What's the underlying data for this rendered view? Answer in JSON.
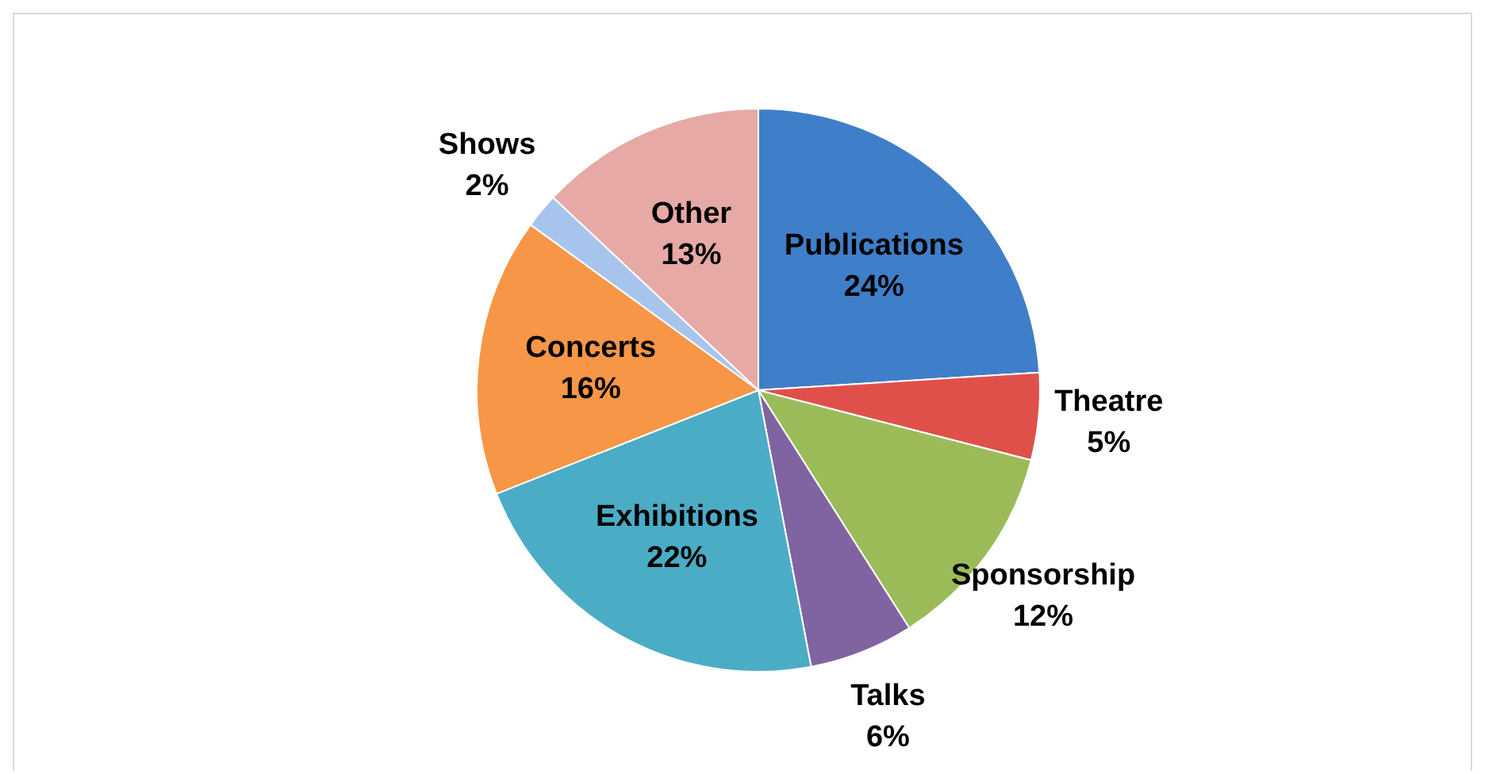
{
  "chart_data": {
    "type": "pie",
    "categories": [
      "Publications",
      "Theatre",
      "Sponsorship",
      "Talks",
      "Exhibitions",
      "Concerts",
      "Shows",
      "Other"
    ],
    "values": [
      24,
      5,
      12,
      6,
      22,
      16,
      2,
      13
    ],
    "value_labels": [
      "24%",
      "5%",
      "12%",
      "6%",
      "22%",
      "16%",
      "2%",
      "13%"
    ],
    "colors": [
      "#3f7ec8",
      "#e0504a",
      "#9bbb59",
      "#8064a2",
      "#4bacc6",
      "#f79646",
      "#a7c4ec",
      "#e6a9a5"
    ]
  }
}
